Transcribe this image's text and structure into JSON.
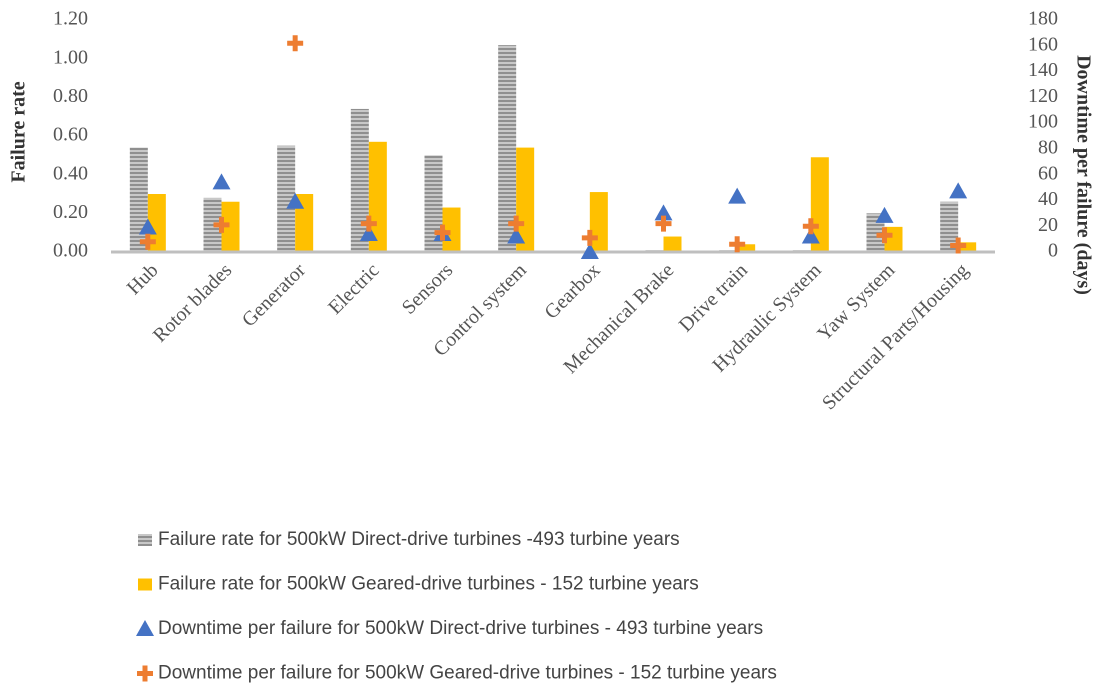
{
  "chart_data": {
    "type": "bar",
    "y_label": "Failure rate",
    "y2_label": "Downtime per failure (days)",
    "categories": [
      "Hub",
      "Rotor blades",
      "Generator",
      "Electric",
      "Sensors",
      "Control system",
      "Gearbox",
      "Mechanical Brake",
      "Drive train",
      "Hydraulic System",
      "Yaw System",
      "Structural Parts/Housing"
    ],
    "series": [
      {
        "name": "Failure rate for 500kW Direct-drive turbines -493 turbine years",
        "type": "bar",
        "color": "#a6a6a6",
        "values": [
          0.54,
          0.28,
          0.55,
          0.74,
          0.5,
          1.07,
          0,
          0.01,
          0.01,
          0.01,
          0.2,
          0.26
        ]
      },
      {
        "name": "Failure rate for 500kW Geared-drive turbines - 152 turbine years",
        "type": "bar",
        "color": "#ffc000",
        "values": [
          0.3,
          0.26,
          0.3,
          0.57,
          0.23,
          0.54,
          0.31,
          0.08,
          0.04,
          0.49,
          0.13,
          0.05
        ]
      },
      {
        "name": "Downtime per failure for 500kW Direct-drive turbines - 493 turbine years",
        "type": "scatter",
        "marker": "triangle",
        "axis": "y2",
        "color": "#4472c4",
        "values": [
          19,
          54,
          39,
          14,
          14,
          12,
          0,
          30,
          43,
          12,
          28,
          47
        ]
      },
      {
        "name": "Downtime per failure for 500kW Geared-drive turbines - 152 turbine years",
        "type": "scatter",
        "marker": "plus",
        "axis": "y2",
        "color": "#ed7d31",
        "values": [
          8,
          21,
          162,
          22,
          15,
          22,
          11,
          22,
          6,
          20,
          13,
          5
        ]
      }
    ],
    "ylim": [
      0,
      1.2
    ],
    "yticks": [
      {
        "value": 0,
        "label": "0.00"
      },
      {
        "value": 0.2,
        "label": "0.20"
      },
      {
        "value": 0.4,
        "label": "0.40"
      },
      {
        "value": 0.6,
        "label": "0.60"
      },
      {
        "value": 0.8,
        "label": "0.80"
      },
      {
        "value": 1.0,
        "label": "1.00"
      },
      {
        "value": 1.2,
        "label": "1.20"
      }
    ],
    "y2lim": [
      0,
      180
    ],
    "y2ticks": [
      0,
      20,
      40,
      60,
      80,
      100,
      120,
      140,
      160,
      180
    ],
    "grid": false,
    "legend": "bottom"
  }
}
